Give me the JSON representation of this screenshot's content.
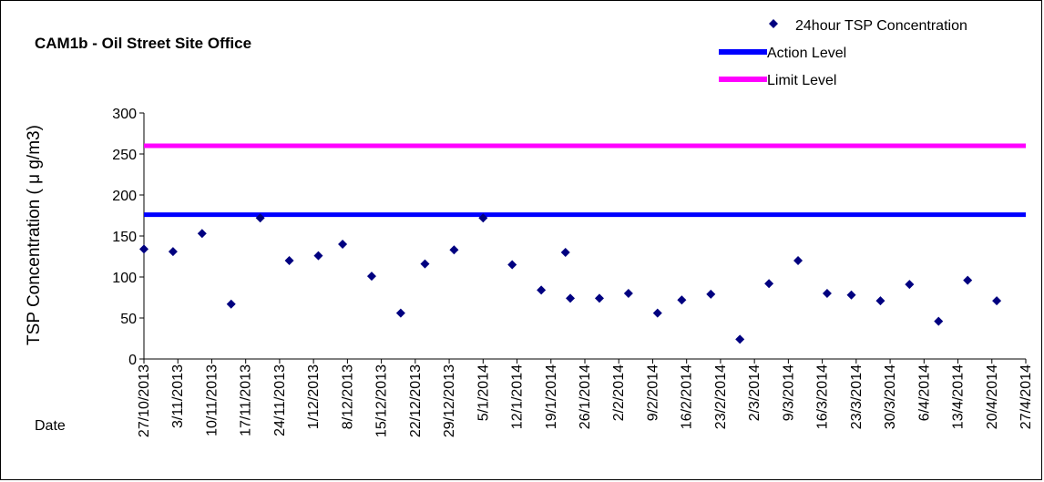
{
  "chart_data": {
    "type": "scatter",
    "title": "CAM1b - Oil Street Site Office",
    "xlabel": "Date",
    "ylabel": "TSP Concentration ( μ g/m3)",
    "ylim": [
      0,
      300
    ],
    "yticks": [
      0,
      50,
      100,
      150,
      200,
      250,
      300
    ],
    "xlim": [
      "2013-10-27",
      "2014-04-27"
    ],
    "xtick_labels": [
      "27/10/2013",
      "3/11/2013",
      "10/11/2013",
      "17/11/2013",
      "24/11/2013",
      "1/12/2013",
      "8/12/2013",
      "15/12/2013",
      "22/12/2013",
      "29/12/2013",
      "5/1/2014",
      "12/1/2014",
      "19/1/2014",
      "26/1/2014",
      "2/2/2014",
      "9/2/2014",
      "16/2/2014",
      "23/2/2014",
      "2/3/2014",
      "9/3/2014",
      "16/3/2014",
      "23/3/2014",
      "30/3/2014",
      "6/4/2014",
      "13/4/2014",
      "20/4/2014",
      "27/4/2014"
    ],
    "grid": false,
    "legend_position": "top-right",
    "series": [
      {
        "name": "24hour TSP Concentration",
        "kind": "scatter",
        "marker": "diamond",
        "color": "#000080",
        "points": [
          {
            "x": "2013-10-27",
            "y": 134
          },
          {
            "x": "2013-11-02",
            "y": 131
          },
          {
            "x": "2013-11-08",
            "y": 153
          },
          {
            "x": "2013-11-14",
            "y": 67
          },
          {
            "x": "2013-11-20",
            "y": 172
          },
          {
            "x": "2013-11-26",
            "y": 120
          },
          {
            "x": "2013-12-02",
            "y": 126
          },
          {
            "x": "2013-12-07",
            "y": 140
          },
          {
            "x": "2013-12-13",
            "y": 101
          },
          {
            "x": "2013-12-19",
            "y": 56
          },
          {
            "x": "2013-12-24",
            "y": 116
          },
          {
            "x": "2013-12-30",
            "y": 133
          },
          {
            "x": "2014-01-05",
            "y": 172
          },
          {
            "x": "2014-01-11",
            "y": 115
          },
          {
            "x": "2014-01-17",
            "y": 84
          },
          {
            "x": "2014-01-22",
            "y": 130
          },
          {
            "x": "2014-01-23",
            "y": 74
          },
          {
            "x": "2014-01-29",
            "y": 74
          },
          {
            "x": "2014-02-04",
            "y": 80
          },
          {
            "x": "2014-02-10",
            "y": 56
          },
          {
            "x": "2014-02-15",
            "y": 72
          },
          {
            "x": "2014-02-21",
            "y": 79
          },
          {
            "x": "2014-02-27",
            "y": 24
          },
          {
            "x": "2014-03-05",
            "y": 92
          },
          {
            "x": "2014-03-11",
            "y": 120
          },
          {
            "x": "2014-03-17",
            "y": 80
          },
          {
            "x": "2014-03-22",
            "y": 78
          },
          {
            "x": "2014-03-28",
            "y": 71
          },
          {
            "x": "2014-04-03",
            "y": 91
          },
          {
            "x": "2014-04-09",
            "y": 46
          },
          {
            "x": "2014-04-15",
            "y": 96
          },
          {
            "x": "2014-04-21",
            "y": 71
          }
        ]
      },
      {
        "name": "Action Level",
        "kind": "hline",
        "color": "#0000FF",
        "value": 176
      },
      {
        "name": "Limit Level",
        "kind": "hline",
        "color": "#FF00FF",
        "value": 260
      }
    ]
  }
}
